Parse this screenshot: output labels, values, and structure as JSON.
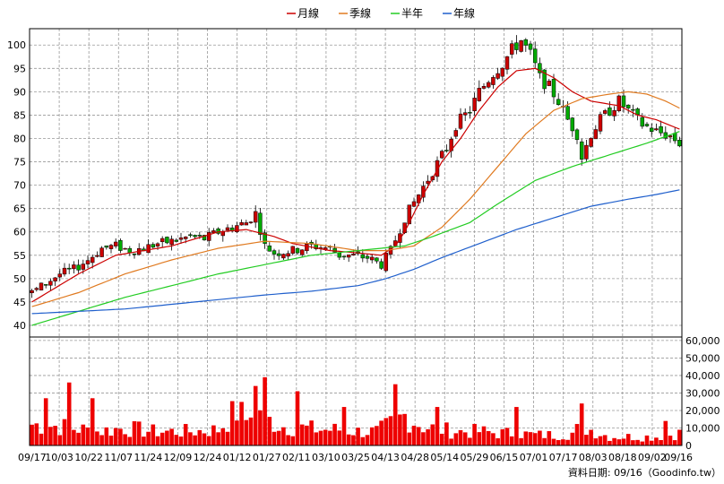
{
  "chart_data": {
    "type": "candlestick",
    "legend": [
      {
        "name": "月線",
        "color": "#cc0000"
      },
      {
        "name": "季線",
        "color": "#e07a20"
      },
      {
        "name": "半年",
        "color": "#22cc22"
      },
      {
        "name": "年線",
        "color": "#1f5fcc"
      }
    ],
    "price_axis": {
      "ticks": [
        40,
        45,
        50,
        55,
        60,
        65,
        70,
        75,
        80,
        85,
        90,
        95,
        100
      ],
      "ylim": [
        37.5,
        103.5
      ]
    },
    "volume_axis": {
      "ticks": [
        0,
        10000,
        20000,
        30000,
        40000,
        50000,
        60000
      ],
      "tick_labels": [
        "0",
        "10,000",
        "20,000",
        "30,000",
        "40,000",
        "50,000",
        "60,000"
      ],
      "ylim": [
        0,
        62000
      ]
    },
    "x_labels": [
      "09/17",
      "10/03",
      "10/22",
      "11/07",
      "11/24",
      "12/09",
      "12/24",
      "01/12",
      "01/27",
      "02/11",
      "03/10",
      "03/25",
      "04/13",
      "04/28",
      "05/14",
      "05/29",
      "06/15",
      "07/01",
      "07/17",
      "08/03",
      "08/18",
      "09/02",
      "09/16"
    ],
    "price_trajectory": [
      [
        0,
        47
      ],
      [
        3,
        49
      ],
      [
        6,
        51
      ],
      [
        9,
        52
      ],
      [
        12,
        54
      ],
      [
        15,
        56.5
      ],
      [
        18,
        57
      ],
      [
        21,
        56
      ],
      [
        24,
        56.5
      ],
      [
        27,
        57.5
      ],
      [
        30,
        58
      ],
      [
        34,
        59
      ],
      [
        37,
        58.5
      ],
      [
        40,
        60
      ],
      [
        43,
        61
      ],
      [
        46,
        62
      ],
      [
        48,
        64
      ],
      [
        50,
        57
      ],
      [
        52,
        55.5
      ],
      [
        56,
        56
      ],
      [
        60,
        57
      ],
      [
        64,
        56.5
      ],
      [
        66,
        55
      ],
      [
        68,
        55
      ],
      [
        72,
        54.5
      ],
      [
        75,
        53
      ],
      [
        77,
        56
      ],
      [
        80,
        63
      ],
      [
        83,
        68
      ],
      [
        86,
        73
      ],
      [
        89,
        78
      ],
      [
        91,
        83
      ],
      [
        94,
        86
      ],
      [
        96,
        90
      ],
      [
        99,
        94
      ],
      [
        101,
        96
      ],
      [
        103,
        99
      ],
      [
        105,
        101
      ],
      [
        107,
        98
      ],
      [
        109,
        93
      ],
      [
        111,
        91
      ],
      [
        113,
        88
      ],
      [
        115,
        84
      ],
      [
        117,
        81
      ],
      [
        118,
        76
      ],
      [
        120,
        81
      ],
      [
        122,
        84
      ],
      [
        124,
        86
      ],
      [
        126,
        88
      ],
      [
        128,
        86
      ],
      [
        131,
        83
      ],
      [
        134,
        81.5
      ],
      [
        137,
        80.5
      ],
      [
        139,
        79
      ]
    ],
    "ma": {
      "月線": [
        [
          0,
          45
        ],
        [
          10,
          51
        ],
        [
          18,
          55
        ],
        [
          30,
          57
        ],
        [
          40,
          60
        ],
        [
          46,
          60.5
        ],
        [
          52,
          59
        ],
        [
          56,
          57.5
        ],
        [
          64,
          56
        ],
        [
          70,
          55.5
        ],
        [
          75,
          55
        ],
        [
          78,
          57
        ],
        [
          80,
          60
        ],
        [
          84,
          68
        ],
        [
          88,
          75
        ],
        [
          92,
          80
        ],
        [
          96,
          86
        ],
        [
          100,
          91
        ],
        [
          104,
          94.5
        ],
        [
          108,
          95
        ],
        [
          112,
          93
        ],
        [
          116,
          90
        ],
        [
          120,
          88
        ],
        [
          126,
          87
        ],
        [
          130,
          85
        ],
        [
          134,
          84
        ],
        [
          139,
          82
        ]
      ],
      "季線": [
        [
          0,
          44
        ],
        [
          10,
          47
        ],
        [
          20,
          51
        ],
        [
          30,
          54
        ],
        [
          40,
          56.5
        ],
        [
          50,
          58
        ],
        [
          60,
          57.5
        ],
        [
          70,
          56
        ],
        [
          76,
          56
        ],
        [
          82,
          57
        ],
        [
          88,
          61
        ],
        [
          94,
          67
        ],
        [
          100,
          74
        ],
        [
          106,
          81
        ],
        [
          112,
          86
        ],
        [
          118,
          88.5
        ],
        [
          124,
          89.5
        ],
        [
          128,
          90
        ],
        [
          132,
          89.5
        ],
        [
          136,
          88
        ],
        [
          139,
          86.5
        ]
      ],
      "半年": [
        [
          0,
          40
        ],
        [
          10,
          43
        ],
        [
          20,
          46
        ],
        [
          30,
          48.5
        ],
        [
          40,
          51
        ],
        [
          50,
          53
        ],
        [
          60,
          55
        ],
        [
          70,
          56
        ],
        [
          80,
          57
        ],
        [
          86,
          59
        ],
        [
          94,
          62
        ],
        [
          100,
          66
        ],
        [
          108,
          71
        ],
        [
          116,
          74
        ],
        [
          124,
          76.5
        ],
        [
          132,
          79
        ],
        [
          139,
          81.5
        ]
      ],
      "年線": [
        [
          0,
          42.5
        ],
        [
          10,
          43
        ],
        [
          20,
          43.5
        ],
        [
          30,
          44.5
        ],
        [
          40,
          45.5
        ],
        [
          50,
          46.5
        ],
        [
          60,
          47.3
        ],
        [
          70,
          48.5
        ],
        [
          76,
          50
        ],
        [
          82,
          52
        ],
        [
          88,
          54.5
        ],
        [
          96,
          57.5
        ],
        [
          104,
          60.5
        ],
        [
          112,
          63
        ],
        [
          120,
          65.5
        ],
        [
          128,
          67
        ],
        [
          134,
          68
        ],
        [
          139,
          69
        ]
      ]
    },
    "volume_trajectory": [
      [
        0,
        12000
      ],
      [
        6,
        11000
      ],
      [
        14,
        8000
      ],
      [
        20,
        10000
      ],
      [
        26,
        8000
      ],
      [
        34,
        8000
      ],
      [
        40,
        9000
      ],
      [
        44,
        20000
      ],
      [
        46,
        15000
      ],
      [
        48,
        30000
      ],
      [
        50,
        15000
      ],
      [
        54,
        11000
      ],
      [
        58,
        10000
      ],
      [
        62,
        9000
      ],
      [
        66,
        9000
      ],
      [
        70,
        8000
      ],
      [
        74,
        8000
      ],
      [
        77,
        12000
      ],
      [
        80,
        17000
      ],
      [
        84,
        11000
      ],
      [
        88,
        9000
      ],
      [
        92,
        8000
      ],
      [
        96,
        8000
      ],
      [
        100,
        7000
      ],
      [
        104,
        7000
      ],
      [
        108,
        6000
      ],
      [
        112,
        6000
      ],
      [
        116,
        7000
      ],
      [
        118,
        11000
      ],
      [
        120,
        9000
      ],
      [
        124,
        5000
      ],
      [
        130,
        5000
      ],
      [
        134,
        5000
      ],
      [
        139,
        7000
      ]
    ],
    "volume_spikes": [
      [
        3,
        27000
      ],
      [
        8,
        36000
      ],
      [
        13,
        27000
      ],
      [
        50,
        39000
      ],
      [
        48,
        34000
      ],
      [
        57,
        31000
      ],
      [
        67,
        22000
      ],
      [
        78,
        35000
      ],
      [
        87,
        22000
      ],
      [
        104,
        22000
      ],
      [
        118,
        24000
      ],
      [
        136,
        14000
      ]
    ],
    "footer": "資料日期: 09/16（Goodinfo.tw）"
  }
}
